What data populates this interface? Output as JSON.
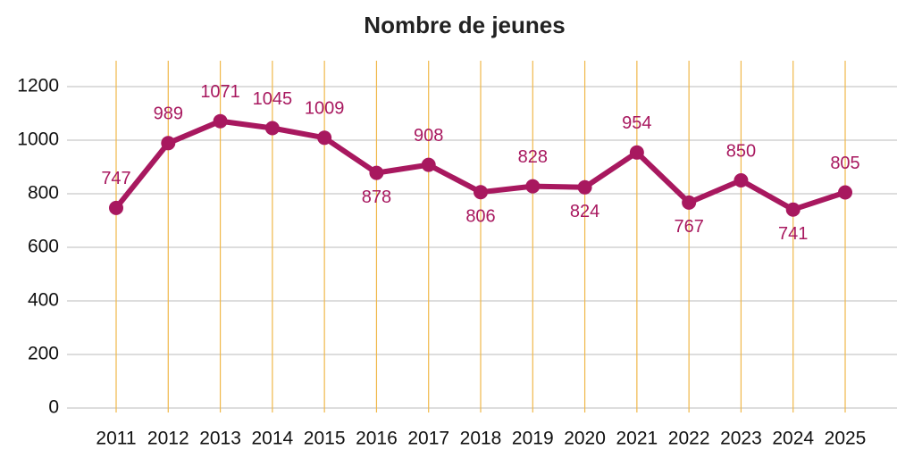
{
  "chart_data": {
    "type": "line",
    "title": "Nombre de jeunes",
    "categories": [
      "2011",
      "2012",
      "2013",
      "2014",
      "2015",
      "2016",
      "2017",
      "2018",
      "2019",
      "2020",
      "2021",
      "2022",
      "2023",
      "2024",
      "2025"
    ],
    "series": [
      {
        "name": "Nombre de jeunes",
        "color": "#a8185f",
        "values": [
          747,
          989,
          1071,
          1045,
          1009,
          878,
          908,
          806,
          828,
          824,
          954,
          767,
          850,
          741,
          805
        ]
      }
    ],
    "ylim": [
      0,
      1200
    ],
    "yticks": [
      0,
      200,
      400,
      600,
      800,
      1000,
      1200
    ],
    "grid": true,
    "grid_color": "#bbbbbb",
    "category_grid_color": "#f0b84a"
  }
}
